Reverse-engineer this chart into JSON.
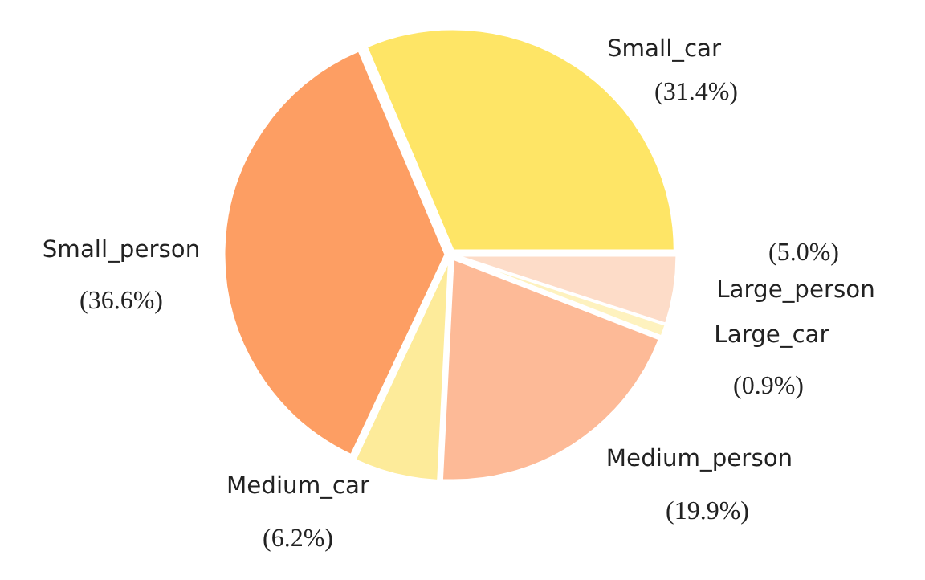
{
  "chart_data": {
    "type": "pie",
    "categories": [
      "Small_car",
      "Small_person",
      "Medium_car",
      "Medium_person",
      "Large_car",
      "Large_person"
    ],
    "values": [
      31.4,
      36.6,
      6.2,
      19.9,
      0.9,
      5.0
    ],
    "colors": [
      "#fee566",
      "#fd9e63",
      "#fdeb9a",
      "#fdba97",
      "#fef2bf",
      "#fddcc8"
    ],
    "value_labels": [
      "(31.4%)",
      "(36.6%)",
      "(6.2%)",
      "(19.9%)",
      "(0.9%)",
      "(5.0%)"
    ]
  }
}
